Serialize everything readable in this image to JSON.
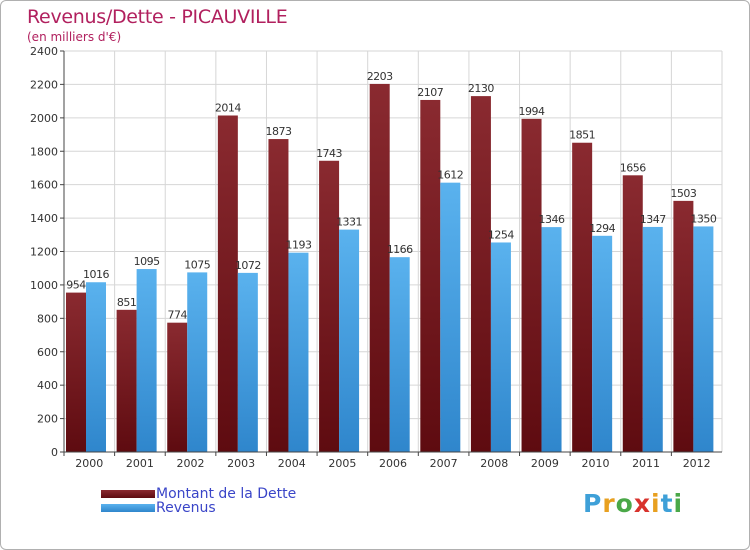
{
  "header": {
    "title": "Revenus/Dette - PICAUVILLE",
    "subtitle": "(en milliers d'€)"
  },
  "chart_data": {
    "type": "bar",
    "categories": [
      "2000",
      "2001",
      "2002",
      "2003",
      "2004",
      "2005",
      "2006",
      "2007",
      "2008",
      "2009",
      "2010",
      "2011",
      "2012"
    ],
    "series": [
      {
        "name": "Montant de la Dette",
        "color": "#7a1c22",
        "values": [
          954,
          851,
          774,
          2014,
          1873,
          1743,
          2203,
          2107,
          2130,
          1994,
          1851,
          1656,
          1503
        ]
      },
      {
        "name": "Revenus",
        "color": "#4da6e6",
        "values": [
          1016,
          1095,
          1075,
          1072,
          1193,
          1331,
          1166,
          1612,
          1254,
          1346,
          1294,
          1347,
          1350
        ]
      }
    ],
    "ylim": [
      0,
      2400
    ],
    "yticks": [
      0,
      200,
      400,
      600,
      800,
      1000,
      1200,
      1400,
      1600,
      1800,
      2000,
      2200,
      2400
    ],
    "grid": true,
    "legend_position": "bottom-left"
  },
  "brand": {
    "logo_letters": [
      "P",
      "r",
      "o",
      "x",
      "i",
      "t",
      "i"
    ],
    "logo_colors": [
      "#3ea0d8",
      "#e8a020",
      "#4aa848",
      "#d8322c",
      "#e8a020",
      "#3ea0d8",
      "#4aa848"
    ]
  }
}
